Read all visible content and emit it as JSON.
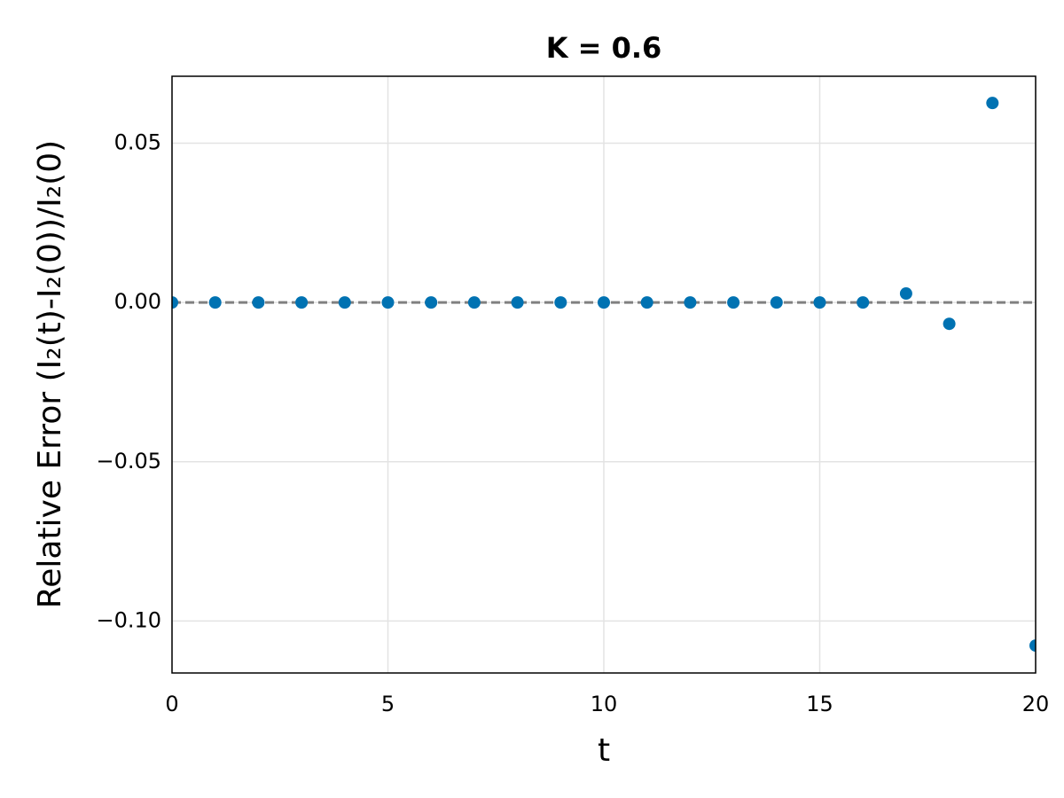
{
  "chart_data": {
    "type": "scatter",
    "title": "K = 0.6",
    "x_label": "t",
    "y_label": "Relative Error (I₂(t)-I₂(0))/I₂(0)",
    "x": [
      0,
      1,
      2,
      3,
      4,
      5,
      6,
      7,
      8,
      9,
      10,
      11,
      12,
      13,
      14,
      15,
      16,
      17,
      18,
      19,
      20
    ],
    "series": [
      {
        "name": "relative error",
        "color": "#0072b2",
        "values": [
          0,
          0,
          0,
          0,
          0,
          0,
          0,
          0,
          0,
          0,
          0,
          0,
          0,
          0,
          0,
          0,
          0,
          0.0028,
          -0.0067,
          0.0626,
          -0.1077
        ]
      }
    ],
    "reference_line": 0,
    "xlim": [
      0,
      20
    ],
    "xticks": [
      0,
      5,
      10,
      15,
      20
    ],
    "ylim": [
      -0.1163,
      0.071
    ],
    "yticks": [
      {
        "value": -0.1,
        "label": "−0.10"
      },
      {
        "value": -0.05,
        "label": "−0.05"
      },
      {
        "value": 0,
        "label": "0.00"
      },
      0.05
    ],
    "grid": true
  }
}
